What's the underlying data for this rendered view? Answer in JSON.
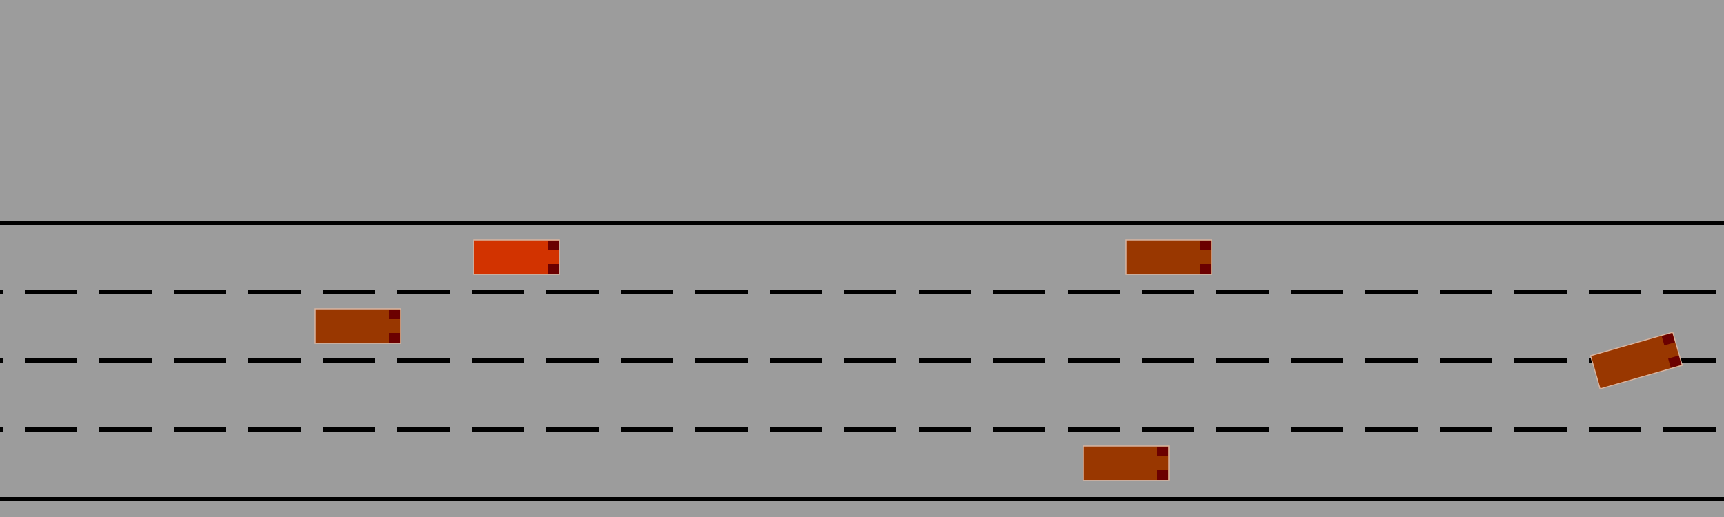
{
  "colors": {
    "background": "#9c9c9c",
    "road_line": "#000000",
    "ego_vehicle": "#d23300",
    "other_vehicle": "#993700",
    "headlight": "#6b0000",
    "vehicle_outline": "#d8b4a0"
  },
  "road": {
    "lanes": 4,
    "boundaries": [
      "solid",
      "dashed",
      "dashed",
      "dashed",
      "solid"
    ]
  },
  "vehicles": [
    {
      "role": "ego",
      "lane": 1,
      "heading_deg": 0
    },
    {
      "role": "other",
      "lane": 1,
      "heading_deg": 0
    },
    {
      "role": "other",
      "lane": 2,
      "heading_deg": 0
    },
    {
      "role": "other",
      "lane": 4,
      "heading_deg": 0
    },
    {
      "role": "other",
      "lane": 3,
      "heading_deg": -16
    }
  ]
}
